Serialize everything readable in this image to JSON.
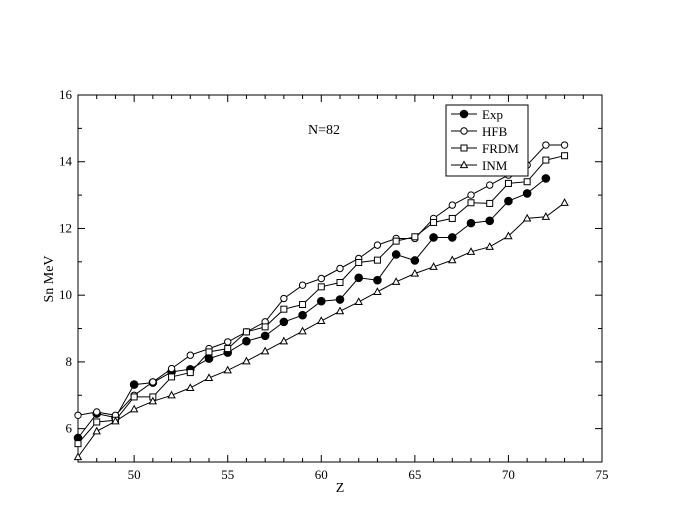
{
  "chart_data": {
    "type": "line",
    "annotation": "N=82",
    "xlabel": "Z",
    "ylabel": "Sn MeV",
    "xlim": [
      47,
      75
    ],
    "ylim": [
      5,
      16
    ],
    "xticks": [
      50,
      55,
      60,
      65,
      70,
      75
    ],
    "yticks": [
      6,
      8,
      10,
      12,
      14,
      16
    ],
    "grid": false,
    "legend": "top-right",
    "series": [
      {
        "name": "Exp",
        "marker": "filled-circle",
        "x": [
          47,
          48,
          49,
          50,
          51,
          52,
          53,
          54,
          55,
          56,
          57,
          58,
          59,
          60,
          61,
          62,
          63,
          64,
          65,
          66,
          67,
          68,
          69,
          70,
          71,
          72
        ],
        "y": [
          5.72,
          6.45,
          6.33,
          7.32,
          7.38,
          7.7,
          7.78,
          8.1,
          8.28,
          8.62,
          8.78,
          9.2,
          9.4,
          9.82,
          9.87,
          10.52,
          10.45,
          11.22,
          11.04,
          11.73,
          11.73,
          12.16,
          12.23,
          12.82,
          13.05,
          13.5
        ]
      },
      {
        "name": "HFB",
        "marker": "open-circle",
        "x": [
          47,
          48,
          49,
          50,
          51,
          52,
          53,
          54,
          55,
          56,
          57,
          58,
          59,
          60,
          61,
          62,
          63,
          64,
          65,
          66,
          67,
          68,
          69,
          70,
          71,
          72,
          73
        ],
        "y": [
          6.4,
          6.5,
          6.4,
          7.0,
          7.4,
          7.8,
          8.2,
          8.4,
          8.6,
          8.9,
          9.2,
          9.9,
          10.3,
          10.5,
          10.8,
          11.1,
          11.5,
          11.7,
          11.7,
          12.3,
          12.7,
          13.0,
          13.3,
          13.6,
          13.9,
          14.5,
          14.5
        ]
      },
      {
        "name": "FRDM",
        "marker": "open-square",
        "x": [
          47,
          48,
          49,
          50,
          51,
          52,
          53,
          54,
          55,
          56,
          57,
          58,
          59,
          60,
          61,
          62,
          63,
          64,
          65,
          66,
          67,
          68,
          69,
          70,
          71,
          72,
          73
        ],
        "y": [
          5.55,
          6.2,
          6.25,
          6.95,
          6.95,
          7.55,
          7.68,
          8.3,
          8.4,
          8.9,
          9.05,
          9.58,
          9.72,
          10.25,
          10.38,
          10.98,
          11.05,
          11.62,
          11.75,
          12.18,
          12.3,
          12.77,
          12.75,
          13.35,
          13.4,
          14.05,
          14.18
        ]
      },
      {
        "name": "INM",
        "marker": "open-triangle",
        "x": [
          47,
          48,
          49,
          50,
          51,
          52,
          53,
          54,
          55,
          56,
          57,
          58,
          59,
          60,
          61,
          62,
          63,
          64,
          65,
          66,
          67,
          68,
          69,
          70,
          71,
          72,
          73
        ],
        "y": [
          5.15,
          5.92,
          6.22,
          6.58,
          6.82,
          7.0,
          7.22,
          7.52,
          7.75,
          8.02,
          8.32,
          8.62,
          8.92,
          9.23,
          9.52,
          9.8,
          10.1,
          10.4,
          10.65,
          10.85,
          11.05,
          11.3,
          11.45,
          11.77,
          12.3,
          12.35,
          12.77
        ]
      }
    ]
  }
}
